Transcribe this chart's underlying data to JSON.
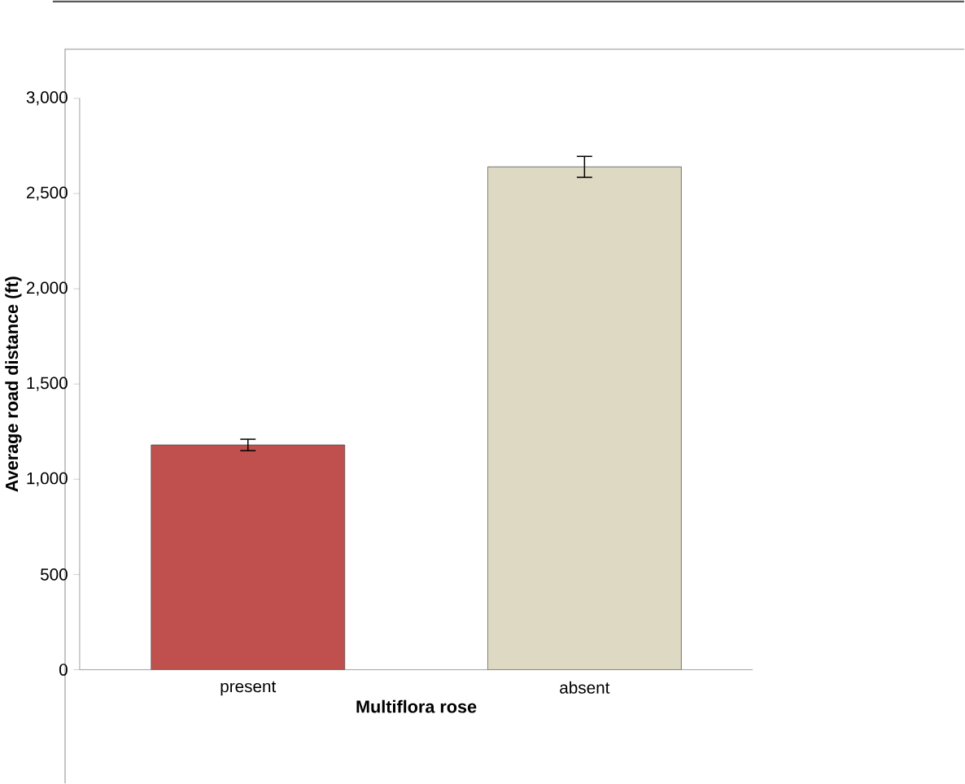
{
  "chart_data": {
    "type": "bar",
    "xlabel": "Multiflora rose",
    "ylabel": "Average road distance (ft)",
    "categories": [
      "present",
      "absent"
    ],
    "values": [
      1180,
      2640
    ],
    "errors": [
      30,
      55
    ],
    "colors": [
      "#c0504d",
      "#ddd9c3"
    ],
    "ylim": [
      0,
      3000
    ],
    "yticks": [
      {
        "value": 0,
        "label": "0"
      },
      {
        "value": 500,
        "label": "500"
      },
      {
        "value": 1000,
        "label": "1,000"
      },
      {
        "value": 1500,
        "label": "1,500"
      },
      {
        "value": 2000,
        "label": "2,000"
      },
      {
        "value": 2500,
        "label": "2,500"
      },
      {
        "value": 3000,
        "label": "3,000"
      }
    ],
    "grid": false
  }
}
